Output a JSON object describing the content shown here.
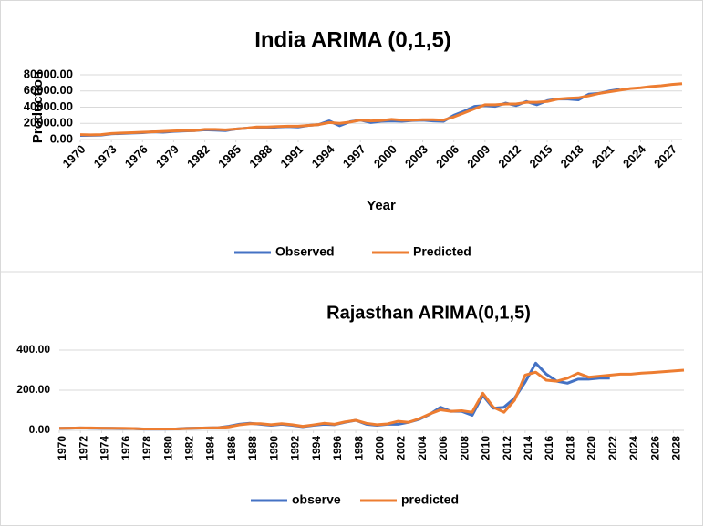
{
  "chart_data": [
    {
      "type": "line",
      "title": "India ARIMA (0,1,5)",
      "x_label": "Year",
      "y_label": "Production",
      "x": [
        1970,
        1971,
        1972,
        1973,
        1974,
        1975,
        1976,
        1977,
        1978,
        1979,
        1980,
        1981,
        1982,
        1983,
        1984,
        1985,
        1986,
        1987,
        1988,
        1989,
        1990,
        1991,
        1992,
        1993,
        1994,
        1995,
        1996,
        1997,
        1998,
        1999,
        2000,
        2001,
        2002,
        2003,
        2004,
        2005,
        2006,
        2007,
        2008,
        2009,
        2010,
        2011,
        2012,
        2013,
        2014,
        2015,
        2016,
        2017,
        2018,
        2019,
        2020,
        2021,
        2022,
        2023,
        2024,
        2025,
        2026,
        2027,
        2028
      ],
      "xlim": [
        1970,
        2028
      ],
      "xticks": [
        1970,
        1973,
        1976,
        1979,
        1982,
        1985,
        1988,
        1991,
        1994,
        1997,
        2000,
        2003,
        2006,
        2009,
        2012,
        2015,
        2018,
        2021,
        2024,
        2027
      ],
      "ylim": [
        0,
        80000
      ],
      "yticks": [
        {
          "value": 0,
          "label": "0.00"
        },
        {
          "value": 20000,
          "label": "20000.00"
        },
        {
          "value": 40000,
          "label": "40000.00"
        },
        {
          "value": 60000,
          "label": "60000.00"
        },
        {
          "value": 80000,
          "label": "80000.00"
        }
      ],
      "grid": true,
      "legend": "bottom",
      "series": [
        {
          "name": "Observed",
          "color": "#4472c4",
          "values": [
            5000,
            5200,
            5500,
            7000,
            7500,
            8000,
            8500,
            9500,
            9000,
            10000,
            10500,
            11000,
            12000,
            11500,
            11000,
            13000,
            14000,
            15000,
            14500,
            15500,
            16000,
            15500,
            17500,
            18500,
            23000,
            17000,
            22000,
            24000,
            21000,
            22500,
            23000,
            22500,
            23500,
            24000,
            23000,
            22500,
            30000,
            35000,
            41000,
            42000,
            41000,
            45000,
            42000,
            47000,
            43000,
            48000,
            50000,
            50000,
            49000,
            56000,
            57000,
            60000,
            62000,
            null,
            null,
            null,
            null,
            null,
            null
          ]
        },
        {
          "name": "Predicted",
          "color": "#ed7d31",
          "values": [
            6000,
            5800,
            6000,
            7500,
            8000,
            8500,
            9000,
            9500,
            10000,
            10500,
            11000,
            11000,
            12500,
            12500,
            12000,
            13000,
            14000,
            15500,
            15500,
            16000,
            16500,
            16500,
            17500,
            18500,
            21000,
            20000,
            21500,
            24000,
            23000,
            23500,
            25000,
            24000,
            24000,
            24500,
            24500,
            24000,
            28000,
            33000,
            38000,
            43000,
            43000,
            44000,
            44000,
            46000,
            46000,
            47000,
            50000,
            51000,
            51500,
            54000,
            57000,
            59000,
            61000,
            63000,
            64000,
            65500,
            66500,
            68000,
            69000
          ]
        }
      ]
    },
    {
      "type": "line",
      "title": "Rajasthan ARIMA(0,1,5)",
      "x": [
        1970,
        1971,
        1972,
        1973,
        1974,
        1975,
        1976,
        1977,
        1978,
        1979,
        1980,
        1981,
        1982,
        1983,
        1984,
        1985,
        1986,
        1987,
        1988,
        1989,
        1990,
        1991,
        1992,
        1993,
        1994,
        1995,
        1996,
        1997,
        1998,
        1999,
        2000,
        2001,
        2002,
        2003,
        2004,
        2005,
        2006,
        2007,
        2008,
        2009,
        2010,
        2011,
        2012,
        2013,
        2014,
        2015,
        2016,
        2017,
        2018,
        2019,
        2020,
        2021,
        2022,
        2023,
        2024,
        2025,
        2026,
        2027,
        2028,
        2029
      ],
      "xlim": [
        1970,
        2029
      ],
      "xticks": [
        1970,
        1972,
        1974,
        1976,
        1978,
        1980,
        1982,
        1984,
        1986,
        1988,
        1990,
        1992,
        1994,
        1996,
        1998,
        2000,
        2002,
        2004,
        2006,
        2008,
        2010,
        2012,
        2014,
        2016,
        2018,
        2020,
        2022,
        2024,
        2026,
        2028
      ],
      "ylim": [
        0,
        400
      ],
      "yticks": [
        {
          "value": 0,
          "label": "0.00"
        },
        {
          "value": 200,
          "label": "200.00"
        },
        {
          "value": 400,
          "label": "400.00"
        }
      ],
      "grid": true,
      "legend": "bottom",
      "series": [
        {
          "name": "observe",
          "color": "#4472c4",
          "values": [
            10,
            11,
            12,
            11,
            10,
            10,
            9,
            9,
            6,
            6,
            6,
            7,
            10,
            11,
            12,
            13,
            20,
            30,
            35,
            30,
            25,
            30,
            25,
            18,
            25,
            30,
            28,
            40,
            50,
            30,
            25,
            30,
            30,
            40,
            55,
            80,
            115,
            95,
            95,
            75,
            175,
            110,
            115,
            160,
            240,
            335,
            280,
            245,
            235,
            255,
            255,
            260,
            260,
            null,
            null,
            null,
            null,
            null,
            null,
            null
          ]
        },
        {
          "name": "predicted",
          "color": "#ed7d31",
          "values": [
            10,
            11,
            12,
            12,
            11,
            10,
            10,
            9,
            7,
            7,
            7,
            7,
            9,
            11,
            12,
            13,
            17,
            27,
            33,
            33,
            28,
            33,
            28,
            20,
            27,
            35,
            30,
            42,
            50,
            35,
            28,
            32,
            45,
            40,
            58,
            82,
            102,
            95,
            98,
            90,
            185,
            115,
            90,
            150,
            275,
            290,
            250,
            245,
            260,
            285,
            265,
            270,
            275,
            280,
            280,
            285,
            288,
            292,
            296,
            300
          ]
        }
      ]
    }
  ]
}
